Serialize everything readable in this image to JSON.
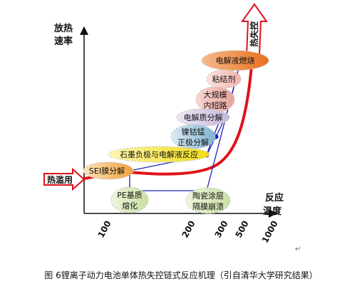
{
  "axes": {
    "y_label_line1": "放热",
    "y_label_line2": "速率",
    "x_label_line1": "反应",
    "x_label_line2": "温度",
    "x_ticks": [
      "100",
      "200",
      "300",
      "500",
      "1000"
    ]
  },
  "arrows": {
    "thermal_abuse": "热滥用",
    "thermal_runaway": "热失控"
  },
  "reactions": {
    "electrolyte_combustion": "电解液燃烧",
    "binder": "粘结剂",
    "large_short_line1": "大规模",
    "large_short_line2": "内短路",
    "electrolyte_decomp": "电解质分解",
    "cathode_line1": "镍钴锰",
    "cathode_line2": "正极分解",
    "graphite_anode": "石墨负极与电解液反应",
    "sei": "SEI膜分解",
    "pe_line1": "PE基质",
    "pe_line2": "熔化",
    "ceramic_line1": "陶瓷涂层",
    "ceramic_line2": "隔膜崩溃"
  },
  "caption": "图 6锂离子动力电池单体热失控链式反应机理（引自清华大学研究结果）",
  "return_mark": "↵",
  "colors": {
    "curve": "#e0121b",
    "chain_line": "#2222bb",
    "node": "#1a1ad6",
    "axis": "#111111"
  }
}
